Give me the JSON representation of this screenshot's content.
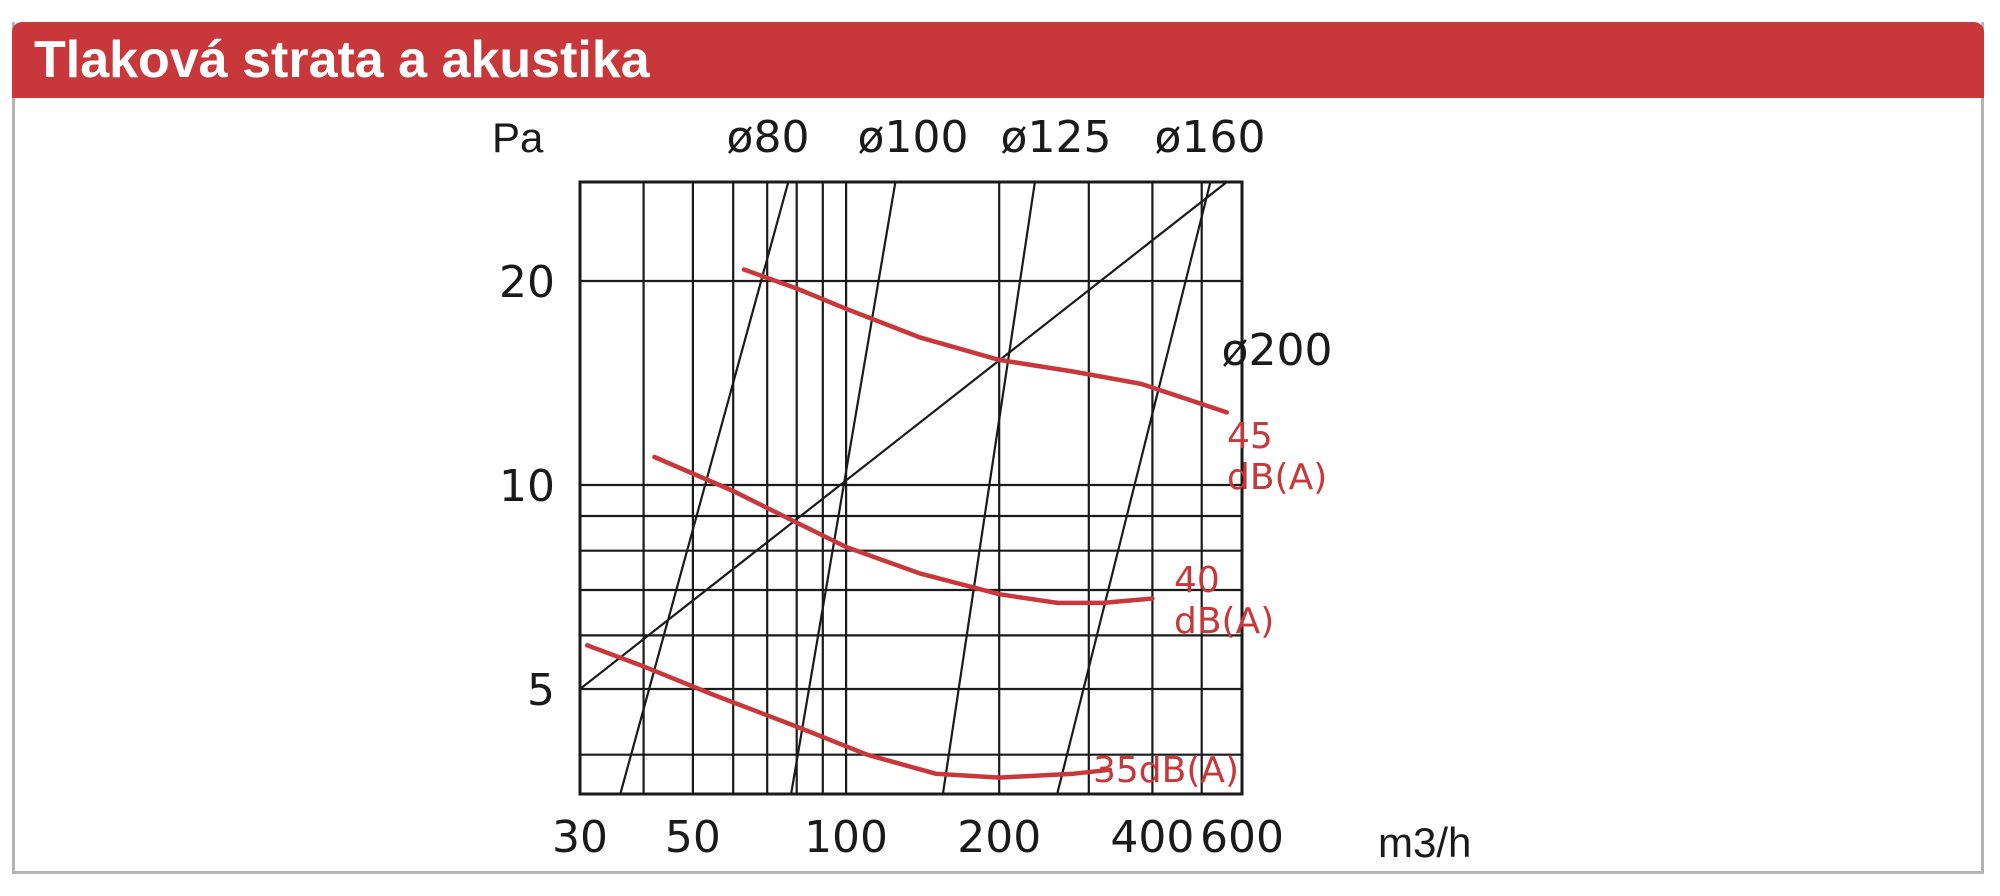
{
  "header": {
    "title": "Tlaková strata a akustika"
  },
  "chart_data": {
    "type": "line",
    "title": "",
    "xlabel": "m3/h",
    "ylabel": "Pa",
    "x_scale": "log",
    "y_scale": "log",
    "xlim": [
      30,
      600
    ],
    "ylim": [
      3.5,
      28
    ],
    "x_ticks": [
      {
        "value": 30,
        "label": "30"
      },
      {
        "value": 50,
        "label": "50"
      },
      {
        "value": 100,
        "label": "100"
      },
      {
        "value": 200,
        "label": "200"
      },
      {
        "value": 400,
        "label": "400"
      },
      {
        "value": 600,
        "label": "600"
      }
    ],
    "y_ticks": [
      {
        "value": 5,
        "label": "5"
      },
      {
        "value": 10,
        "label": "10"
      },
      {
        "value": 20,
        "label": "20"
      }
    ],
    "x_grid": [
      30,
      40,
      50,
      60,
      70,
      80,
      90,
      100,
      200,
      300,
      400,
      500,
      600
    ],
    "y_grid": [
      4,
      5,
      6,
      7,
      8,
      9,
      10,
      20
    ],
    "grid": true,
    "diameter_lines": [
      {
        "label": "ø80",
        "points": [
          [
            36,
            3.5
          ],
          [
            77,
            28
          ]
        ]
      },
      {
        "label": "ø100",
        "points": [
          [
            78,
            3.5
          ],
          [
            125,
            28
          ]
        ]
      },
      {
        "label": "ø125",
        "points": [
          [
            155,
            3.5
          ],
          [
            235,
            28
          ]
        ]
      },
      {
        "label": "ø160",
        "points": [
          [
            260,
            3.5
          ],
          [
            520,
            28
          ]
        ]
      },
      {
        "label": "ø200",
        "points": [
          [
            30,
            5
          ],
          [
            560,
            28
          ]
        ]
      }
    ],
    "series": [
      {
        "name": "35dB(A)",
        "color": "#c8373a",
        "points": [
          [
            31,
            5.8
          ],
          [
            40,
            5.4
          ],
          [
            55,
            4.9
          ],
          [
            80,
            4.4
          ],
          [
            110,
            4.0
          ],
          [
            150,
            3.75
          ],
          [
            200,
            3.7
          ],
          [
            280,
            3.75
          ],
          [
            330,
            3.8
          ]
        ]
      },
      {
        "name": "40 dB(A)",
        "color": "#c8373a",
        "points": [
          [
            42,
            11.0
          ],
          [
            60,
            9.8
          ],
          [
            80,
            8.8
          ],
          [
            100,
            8.1
          ],
          [
            140,
            7.4
          ],
          [
            200,
            6.9
          ],
          [
            260,
            6.7
          ],
          [
            320,
            6.7
          ],
          [
            400,
            6.8
          ]
        ]
      },
      {
        "name": "45 dB(A)",
        "color": "#c8373a",
        "points": [
          [
            63,
            20.8
          ],
          [
            80,
            19.5
          ],
          [
            100,
            18.2
          ],
          [
            140,
            16.5
          ],
          [
            200,
            15.3
          ],
          [
            280,
            14.7
          ],
          [
            380,
            14.1
          ],
          [
            560,
            12.8
          ]
        ]
      }
    ]
  }
}
